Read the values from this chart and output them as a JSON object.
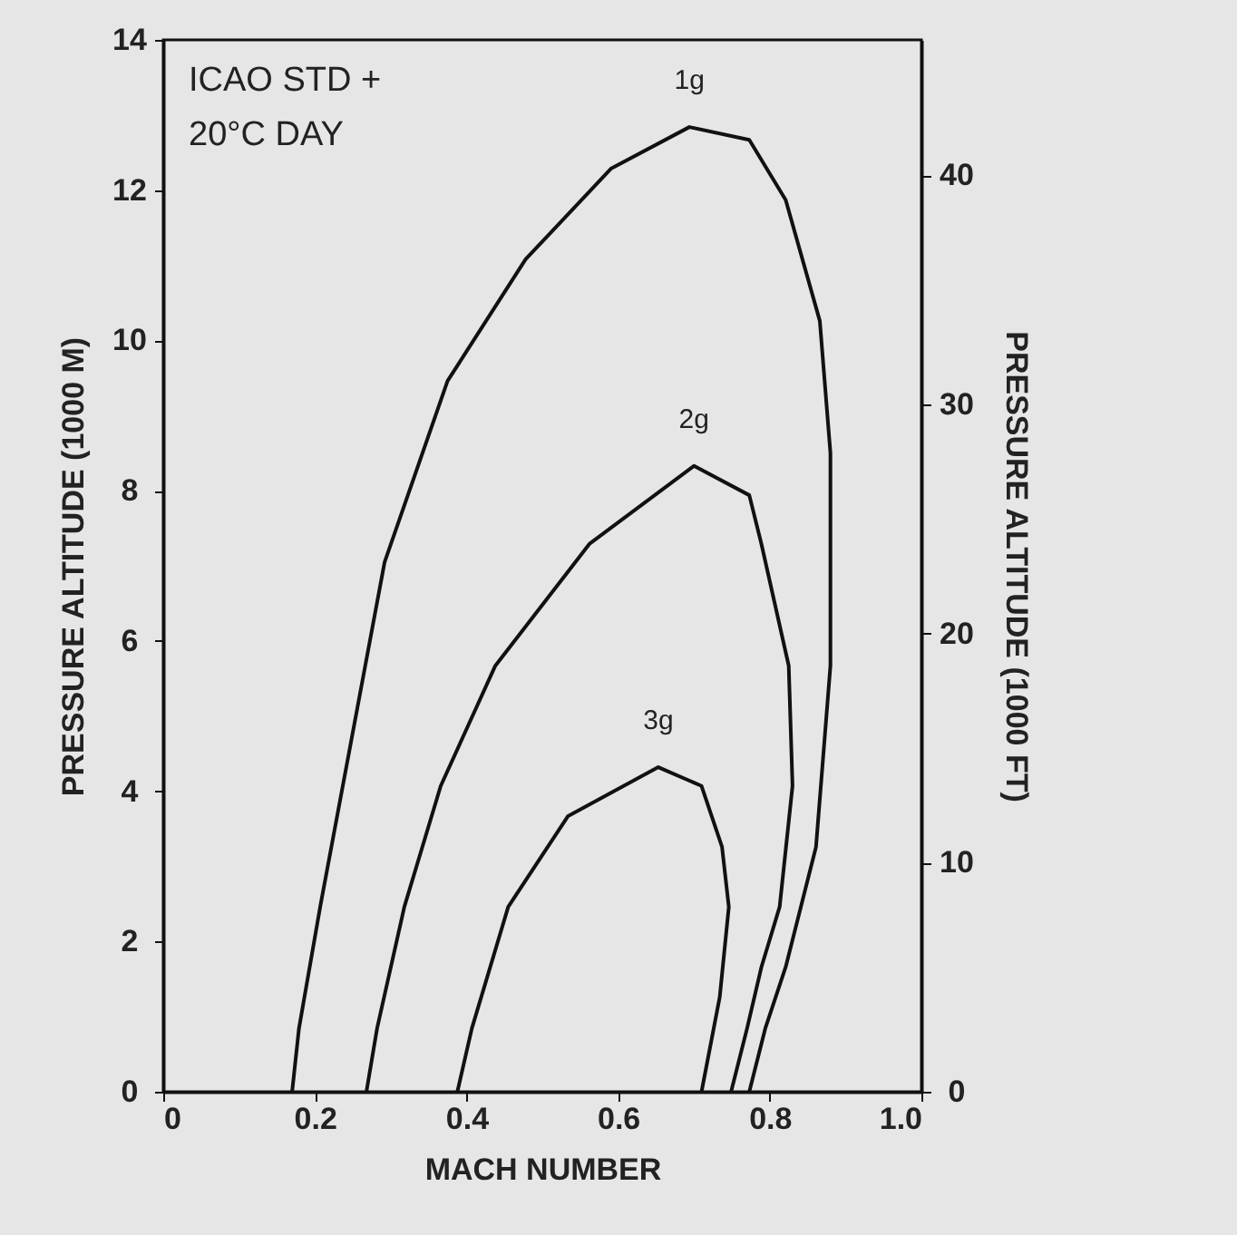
{
  "chart_data": {
    "type": "line",
    "xlabel": "MACH NUMBER",
    "ylabel": "PRESSURE ALTITUDE (1000 M)",
    "y2label": "PRESSURE ALTITUDE (1000 FT)",
    "annotations": [
      "ICAO STD +",
      "20°C DAY"
    ],
    "xlim": [
      0,
      1
    ],
    "xticks": [
      0,
      0.2,
      0.4,
      0.6,
      0.8,
      {
        "value": 1,
        "label": "1.0"
      }
    ],
    "ylim": [
      0,
      14
    ],
    "yticks": [
      0,
      2,
      4,
      6,
      8,
      10,
      12,
      14
    ],
    "y2lim": [
      0,
      45.9
    ],
    "y2ticks": [
      0,
      10,
      20,
      30,
      40
    ],
    "grid": false,
    "marker": "none",
    "line_style": "solid",
    "series": [
      {
        "name": "1g",
        "color": "#111111",
        "x": [
          0.17,
          0.179,
          0.207,
          0.292,
          0.375,
          0.478,
          0.591,
          0.694,
          0.773,
          0.821,
          0.866,
          0.88,
          0.88,
          0.861,
          0.821,
          0.794,
          0.773
        ],
        "values": [
          0,
          0.84,
          2.46,
          7.05,
          9.46,
          11.08,
          12.29,
          12.84,
          12.67,
          11.87,
          10.26,
          8.5,
          5.67,
          3.26,
          1.66,
          0.84,
          0
        ]
      },
      {
        "name": "2g",
        "color": "#111111",
        "x": [
          0.268,
          0.282,
          0.318,
          0.366,
          0.438,
          0.562,
          0.7,
          0.773,
          0.789,
          0.825,
          0.83,
          0.813,
          0.789,
          0.77,
          0.749
        ],
        "values": [
          0,
          0.84,
          2.46,
          4.07,
          5.67,
          7.29,
          8.33,
          7.94,
          7.29,
          5.67,
          4.07,
          2.46,
          1.66,
          0.84,
          0
        ]
      },
      {
        "name": "3g",
        "color": "#111111",
        "x": [
          0.388,
          0.407,
          0.455,
          0.534,
          0.653,
          0.71,
          0.737,
          0.746,
          0.734,
          0.71
        ],
        "values": [
          0,
          0.84,
          2.46,
          3.67,
          4.32,
          4.07,
          3.26,
          2.46,
          1.26,
          0
        ]
      }
    ]
  }
}
